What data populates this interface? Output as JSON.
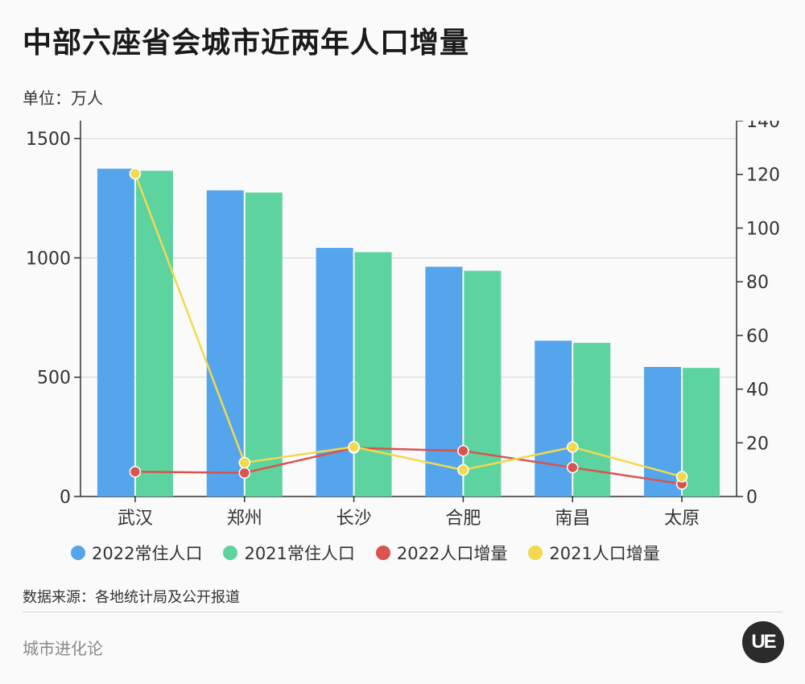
{
  "title": "中部六座省会城市近两年人口增量",
  "unit_label": "单位：万人",
  "source_label": "数据来源：各地统计局及公开报道",
  "brand_label": "城市进化论",
  "logo_text": "UE",
  "colors": {
    "bar2022": "#55a5ec",
    "bar2021": "#5dd3a0",
    "line2022": "#d9534f",
    "line2021": "#f2d94e",
    "grid": "#d5d5d5"
  },
  "legend": [
    {
      "label": "2022常住人口",
      "color": "#55a5ec"
    },
    {
      "label": "2021常住人口",
      "color": "#5dd3a0"
    },
    {
      "label": "2022人口增量",
      "color": "#d9534f"
    },
    {
      "label": "2021人口增量",
      "color": "#f2d94e"
    }
  ],
  "chart_data": {
    "type": "bar",
    "categories": [
      "武汉",
      "郑州",
      "长沙",
      "合肥",
      "南昌",
      "太原"
    ],
    "series": [
      {
        "name": "2022常住人口",
        "type": "bar",
        "axis": "left",
        "values": [
          1374,
          1283,
          1042,
          963,
          653,
          543
        ]
      },
      {
        "name": "2021常住人口",
        "type": "bar",
        "axis": "left",
        "values": [
          1365,
          1274,
          1024,
          946,
          644,
          539
        ]
      },
      {
        "name": "2022人口增量",
        "type": "line",
        "axis": "right",
        "values": [
          9.2,
          8.8,
          18.1,
          17.0,
          10.8,
          4.7
        ]
      },
      {
        "name": "2021人口增量",
        "type": "line",
        "axis": "right",
        "values": [
          120.2,
          12.6,
          18.5,
          9.9,
          18.4,
          7.4
        ]
      }
    ],
    "y_left": {
      "ticks": [
        0,
        500,
        1000,
        1500
      ],
      "range": [
        0,
        1575
      ]
    },
    "y_right": {
      "ticks": [
        0,
        20,
        40,
        60,
        80,
        100,
        120,
        140
      ],
      "range": [
        0,
        140
      ]
    },
    "grid": true,
    "legend_position": "bottom"
  }
}
